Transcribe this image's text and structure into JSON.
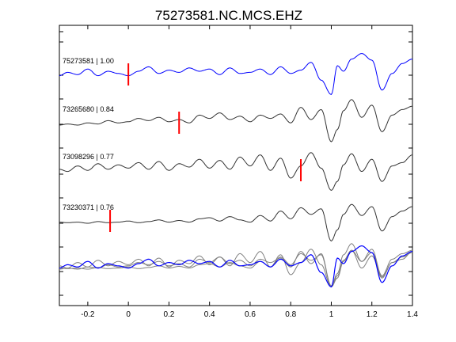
{
  "chart_data": {
    "type": "line",
    "title": "75273581.NC.MCS.EHZ",
    "xlabel": "",
    "ylabel": "",
    "xlim": [
      -0.34,
      1.4
    ],
    "xticks": [
      -0.2,
      0,
      0.2,
      0.4,
      0.6,
      0.8,
      1,
      1.2,
      1.4
    ],
    "xtick_labels": [
      "-0.2",
      "0",
      "0.2",
      "0.4",
      "0.6",
      "0.8",
      "1",
      "1.2",
      "1.4"
    ],
    "grid": false,
    "legend": "none",
    "colors": {
      "reference": "#0000ff",
      "trace": "#333333",
      "overlay": "#808080",
      "pick": "#ff0000"
    },
    "series": [
      {
        "label": "75273581 | 1.00",
        "color": "#0000ff",
        "pick_time": 0.0,
        "x": [
          -0.34,
          -0.3,
          -0.25,
          -0.2,
          -0.15,
          -0.1,
          -0.05,
          0.0,
          0.05,
          0.1,
          0.15,
          0.2,
          0.25,
          0.3,
          0.35,
          0.4,
          0.45,
          0.5,
          0.55,
          0.6,
          0.65,
          0.7,
          0.75,
          0.8,
          0.85,
          0.9,
          0.95,
          1.0,
          1.03,
          1.06,
          1.1,
          1.15,
          1.2,
          1.25,
          1.3,
          1.35,
          1.4
        ],
        "y": [
          0.1,
          0.4,
          0.2,
          0.7,
          0.1,
          0.5,
          0.3,
          0.1,
          0.5,
          0.9,
          0.3,
          0.6,
          0.4,
          0.8,
          0.5,
          0.7,
          0.2,
          0.8,
          0.3,
          0.4,
          0.7,
          0.2,
          0.9,
          0.3,
          0.6,
          1.3,
          -0.3,
          -1.6,
          1.0,
          0.5,
          1.6,
          2.1,
          1.5,
          -1.2,
          0.3,
          1.2,
          1.6
        ]
      },
      {
        "label": "73265680 | 0.84",
        "color": "#333333",
        "pick_time": 0.25,
        "x": [
          -0.34,
          -0.3,
          -0.25,
          -0.2,
          -0.15,
          -0.1,
          -0.05,
          0.0,
          0.05,
          0.1,
          0.15,
          0.2,
          0.25,
          0.3,
          0.35,
          0.4,
          0.45,
          0.5,
          0.55,
          0.6,
          0.65,
          0.7,
          0.75,
          0.8,
          0.85,
          0.9,
          0.95,
          1.0,
          1.03,
          1.06,
          1.1,
          1.15,
          1.2,
          1.25,
          1.3,
          1.35,
          1.4
        ],
        "y": [
          0.0,
          0.1,
          0.0,
          0.2,
          0.1,
          0.4,
          0.2,
          0.3,
          0.6,
          0.4,
          0.7,
          0.3,
          0.5,
          0.2,
          0.9,
          0.6,
          1.1,
          0.5,
          0.8,
          0.3,
          0.9,
          0.6,
          1.0,
          0.2,
          1.6,
          0.5,
          1.4,
          -1.5,
          -0.4,
          1.3,
          2.3,
          0.7,
          1.8,
          -0.6,
          0.9,
          1.4,
          1.7
        ]
      },
      {
        "label": "73098296 | 0.77",
        "color": "#333333",
        "pick_time": 0.85,
        "x": [
          -0.34,
          -0.3,
          -0.25,
          -0.2,
          -0.15,
          -0.1,
          -0.05,
          0.0,
          0.05,
          0.1,
          0.15,
          0.2,
          0.25,
          0.3,
          0.35,
          0.4,
          0.45,
          0.5,
          0.55,
          0.6,
          0.65,
          0.7,
          0.75,
          0.8,
          0.85,
          0.9,
          0.95,
          1.0,
          1.03,
          1.06,
          1.1,
          1.15,
          1.2,
          1.25,
          1.3,
          1.35,
          1.4
        ],
        "y": [
          0.3,
          0.1,
          0.6,
          0.2,
          0.8,
          0.3,
          0.7,
          0.4,
          0.9,
          0.3,
          1.0,
          0.2,
          0.8,
          0.5,
          1.2,
          0.4,
          1.1,
          0.3,
          1.4,
          0.6,
          1.6,
          0.2,
          1.3,
          -0.5,
          0.6,
          1.8,
          0.4,
          -1.6,
          -0.8,
          0.7,
          1.7,
          0.1,
          1.2,
          -0.8,
          0.6,
          0.9,
          1.6
        ]
      },
      {
        "label": "73230371 | 0.76",
        "color": "#333333",
        "pick_time": -0.09,
        "x": [
          -0.34,
          -0.3,
          -0.25,
          -0.2,
          -0.15,
          -0.1,
          -0.05,
          0.0,
          0.05,
          0.1,
          0.15,
          0.2,
          0.25,
          0.3,
          0.35,
          0.4,
          0.45,
          0.5,
          0.55,
          0.6,
          0.65,
          0.7,
          0.75,
          0.8,
          0.85,
          0.9,
          0.95,
          1.0,
          1.03,
          1.06,
          1.1,
          1.15,
          1.2,
          1.25,
          1.3,
          1.35,
          1.4
        ],
        "y": [
          0.1,
          0.05,
          0.1,
          0.0,
          0.15,
          0.05,
          0.1,
          0.2,
          0.05,
          0.15,
          0.3,
          0.1,
          0.25,
          0.1,
          0.4,
          0.5,
          0.2,
          0.6,
          0.3,
          0.1,
          0.7,
          0.2,
          1.1,
          0.4,
          1.4,
          0.8,
          1.3,
          -1.6,
          -0.6,
          0.8,
          1.7,
          0.7,
          1.5,
          -0.7,
          0.6,
          1.1,
          1.5
        ]
      }
    ]
  }
}
